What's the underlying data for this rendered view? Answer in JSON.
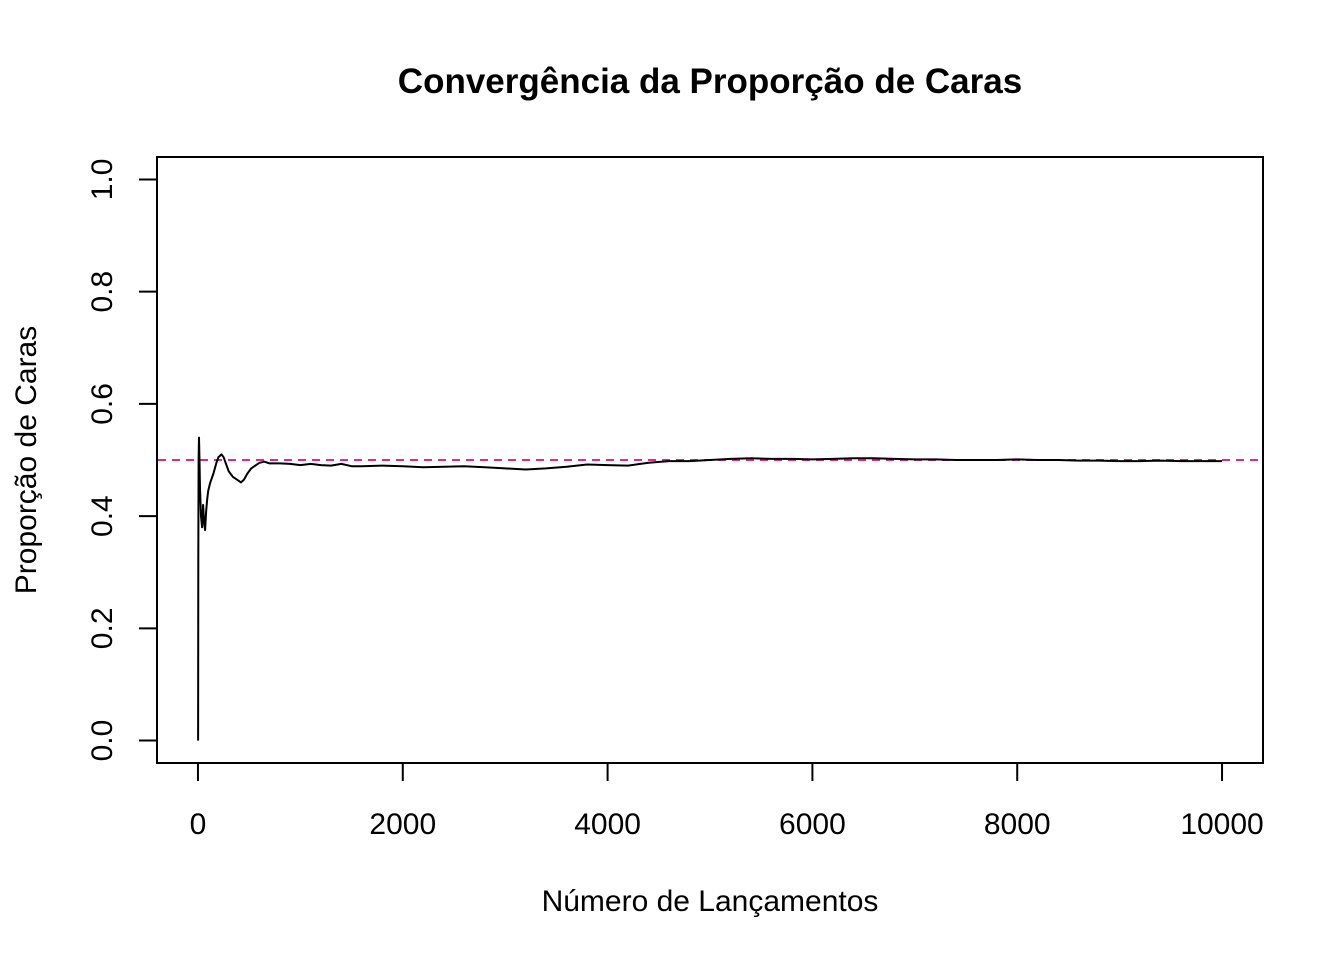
{
  "chart_data": {
    "type": "line",
    "title": "Convergência da Proporção de Caras",
    "xlabel": "Número de Lançamentos",
    "ylabel": "Proporção de Caras",
    "xlim": [
      -400,
      10400
    ],
    "ylim": [
      -0.04,
      1.04
    ],
    "x_ticks": [
      0,
      2000,
      4000,
      6000,
      8000,
      10000
    ],
    "x_tick_labels": [
      "0",
      "2000",
      "4000",
      "6000",
      "8000",
      "10000"
    ],
    "y_ticks": [
      0.0,
      0.2,
      0.4,
      0.6,
      0.8,
      1.0
    ],
    "y_tick_labels": [
      "0.0",
      "0.2",
      "0.4",
      "0.6",
      "0.8",
      "1.0"
    ],
    "grid": false,
    "legend": "none",
    "reference_line": {
      "y": 0.5,
      "style": "dashed",
      "color": "#e0288f"
    },
    "series": [
      {
        "color": "#000000",
        "x": [
          1,
          3,
          6,
          10,
          15,
          20,
          30,
          40,
          50,
          60,
          70,
          80,
          90,
          100,
          120,
          150,
          180,
          200,
          230,
          250,
          280,
          300,
          340,
          380,
          420,
          450,
          480,
          520,
          560,
          600,
          650,
          700,
          800,
          900,
          1000,
          1100,
          1200,
          1300,
          1400,
          1500,
          1600,
          1800,
          2000,
          2200,
          2400,
          2600,
          2800,
          3000,
          3200,
          3400,
          3600,
          3800,
          4000,
          4200,
          4400,
          4600,
          4800,
          5000,
          5200,
          5400,
          5600,
          5800,
          6000,
          6200,
          6400,
          6600,
          6800,
          7000,
          7200,
          7400,
          7600,
          7800,
          8000,
          8200,
          8400,
          8600,
          8800,
          9000,
          9200,
          9400,
          9600,
          9800,
          10000
        ],
        "y": [
          0.0,
          0.33,
          0.5,
          0.54,
          0.5,
          0.45,
          0.4,
          0.38,
          0.42,
          0.39,
          0.375,
          0.41,
          0.43,
          0.445,
          0.46,
          0.475,
          0.495,
          0.505,
          0.51,
          0.505,
          0.49,
          0.48,
          0.47,
          0.465,
          0.46,
          0.465,
          0.475,
          0.485,
          0.49,
          0.495,
          0.497,
          0.494,
          0.494,
          0.493,
          0.491,
          0.493,
          0.491,
          0.49,
          0.493,
          0.489,
          0.489,
          0.49,
          0.489,
          0.487,
          0.488,
          0.489,
          0.487,
          0.485,
          0.483,
          0.485,
          0.488,
          0.492,
          0.491,
          0.49,
          0.495,
          0.498,
          0.498,
          0.5,
          0.502,
          0.503,
          0.502,
          0.502,
          0.501,
          0.502,
          0.503,
          0.503,
          0.502,
          0.501,
          0.501,
          0.5,
          0.5,
          0.5,
          0.501,
          0.5,
          0.5,
          0.499,
          0.499,
          0.498,
          0.498,
          0.499,
          0.498,
          0.498,
          0.498
        ]
      }
    ]
  }
}
